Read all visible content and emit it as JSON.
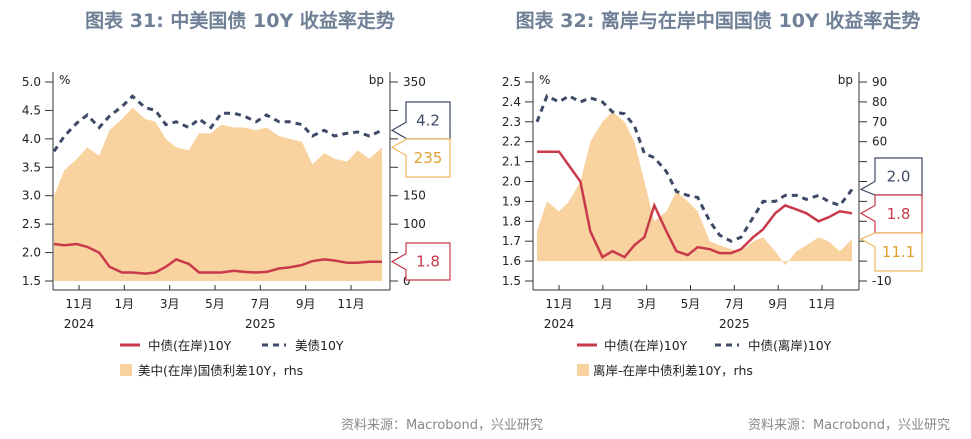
{
  "colors": {
    "cn_onshore": "#c8394a",
    "us": "#3e4a66",
    "spread": "#f8d3a0",
    "title": "#6f8096"
  },
  "chart_data": [
    {
      "type": "line+area",
      "title": "图表 31: 中美国债 10Y 收益率走势",
      "left_unit": "%",
      "right_unit": "bp",
      "ylim_left": [
        1.5,
        5.0
      ],
      "yticks_left": [
        "5.0",
        "4.5",
        "4.0",
        "3.5",
        "3.0",
        "2.5",
        "2.0",
        "1.5"
      ],
      "ylim_right": [
        0,
        350
      ],
      "yticks_right": [
        "350",
        "150",
        "100",
        "0"
      ],
      "xticks": [
        "11月",
        "1月",
        "3月",
        "5月",
        "7月",
        "9月",
        "11月"
      ],
      "xyears": [
        "2024",
        "2025"
      ],
      "x": [
        "2024-10-01",
        "2024-10-15",
        "2024-11-01",
        "2024-11-15",
        "2024-12-01",
        "2024-12-15",
        "2025-01-01",
        "2025-01-15",
        "2025-02-01",
        "2025-02-15",
        "2025-03-01",
        "2025-03-15",
        "2025-04-01",
        "2025-04-15",
        "2025-05-01",
        "2025-05-15",
        "2025-06-01",
        "2025-06-15",
        "2025-07-01",
        "2025-07-15",
        "2025-08-01",
        "2025-08-15",
        "2025-09-01",
        "2025-09-15",
        "2025-10-01",
        "2025-10-15",
        "2025-11-01",
        "2025-11-15",
        "2025-12-01",
        "2025-12-18"
      ],
      "series": [
        {
          "name": "美中(在岸)国债利差10Y，rhs",
          "axis": "right",
          "style": "area",
          "values": [
            150,
            195,
            215,
            235,
            220,
            265,
            285,
            305,
            285,
            280,
            250,
            235,
            230,
            260,
            260,
            275,
            270,
            270,
            265,
            270,
            255,
            250,
            245,
            205,
            225,
            215,
            210,
            230,
            215,
            235
          ]
        },
        {
          "name": "美债10Y",
          "axis": "left",
          "style": "dashed",
          "values": [
            3.78,
            4.05,
            4.28,
            4.42,
            4.2,
            4.4,
            4.57,
            4.75,
            4.55,
            4.5,
            4.25,
            4.3,
            4.2,
            4.35,
            4.2,
            4.45,
            4.45,
            4.4,
            4.3,
            4.42,
            4.3,
            4.3,
            4.25,
            4.05,
            4.15,
            4.05,
            4.1,
            4.12,
            4.05,
            4.15
          ]
        },
        {
          "name": "中债(在岸)10Y",
          "axis": "left",
          "style": "solid",
          "values": [
            2.15,
            2.13,
            2.15,
            2.1,
            2.0,
            1.75,
            1.65,
            1.65,
            1.63,
            1.65,
            1.75,
            1.88,
            1.8,
            1.65,
            1.65,
            1.65,
            1.68,
            1.66,
            1.65,
            1.66,
            1.72,
            1.74,
            1.78,
            1.85,
            1.88,
            1.86,
            1.82,
            1.82,
            1.84,
            1.84
          ]
        }
      ],
      "end_labels": [
        {
          "text": "4.2",
          "series": "美债10Y"
        },
        {
          "text": "235",
          "series": "美中(在岸)国债利差10Y，rhs"
        },
        {
          "text": "1.8",
          "series": "中债(在岸)10Y"
        }
      ]
    },
    {
      "type": "line+area",
      "title": "图表 32: 离岸与在岸中国国债 10Y 收益率走势",
      "left_unit": "%",
      "right_unit": "bp",
      "ylim_left": [
        1.5,
        2.5
      ],
      "yticks_left": [
        "2.5",
        "2.4",
        "2.3",
        "2.2",
        "2.1",
        "2.0",
        "1.9",
        "1.8",
        "1.7",
        "1.6",
        "1.5"
      ],
      "ylim_right": [
        -10,
        90
      ],
      "yticks_right": [
        "90",
        "80",
        "70",
        "60",
        "-10"
      ],
      "xticks": [
        "11月",
        "1月",
        "3月",
        "5月",
        "7月",
        "9月",
        "11月"
      ],
      "xyears": [
        "2024",
        "2025"
      ],
      "x": [
        "2024-10-01",
        "2024-10-15",
        "2024-11-01",
        "2024-11-15",
        "2024-12-01",
        "2024-12-15",
        "2025-01-01",
        "2025-01-15",
        "2025-02-01",
        "2025-02-15",
        "2025-03-01",
        "2025-03-15",
        "2025-04-01",
        "2025-04-15",
        "2025-05-01",
        "2025-05-15",
        "2025-06-01",
        "2025-06-15",
        "2025-07-01",
        "2025-07-15",
        "2025-08-01",
        "2025-08-15",
        "2025-09-01",
        "2025-09-15",
        "2025-10-01",
        "2025-10-15",
        "2025-11-01",
        "2025-11-15",
        "2025-12-01",
        "2025-12-18"
      ],
      "series": [
        {
          "name": "离岸-在岸中债利差10Y，rhs",
          "axis": "right",
          "style": "area",
          "values": [
            15,
            30,
            25,
            30,
            40,
            60,
            70,
            75,
            70,
            60,
            40,
            20,
            25,
            35,
            30,
            25,
            10,
            8,
            6,
            5,
            10,
            12,
            5,
            -2,
            5,
            8,
            12,
            10,
            5,
            11.1
          ]
        },
        {
          "name": "中债(离岸)10Y",
          "axis": "left",
          "style": "dashed",
          "values": [
            2.3,
            2.43,
            2.4,
            2.43,
            2.4,
            2.42,
            2.4,
            2.35,
            2.34,
            2.28,
            2.14,
            2.12,
            2.05,
            1.95,
            1.93,
            1.92,
            1.8,
            1.73,
            1.7,
            1.72,
            1.82,
            1.9,
            1.9,
            1.93,
            1.93,
            1.91,
            1.93,
            1.9,
            1.88,
            1.96
          ]
        },
        {
          "name": "中债(在岸)10Y",
          "axis": "left",
          "style": "solid",
          "values": [
            2.15,
            2.15,
            2.15,
            2.08,
            2.0,
            1.75,
            1.62,
            1.65,
            1.62,
            1.68,
            1.72,
            1.88,
            1.75,
            1.65,
            1.63,
            1.67,
            1.66,
            1.64,
            1.64,
            1.66,
            1.72,
            1.76,
            1.84,
            1.88,
            1.86,
            1.84,
            1.8,
            1.82,
            1.85,
            1.84
          ]
        }
      ],
      "end_labels": [
        {
          "text": "2.0",
          "series": "中债(离岸)10Y"
        },
        {
          "text": "1.8",
          "series": "中债(在岸)10Y"
        },
        {
          "text": "11.1",
          "series": "离岸-在岸中债利差10Y，rhs"
        }
      ]
    }
  ],
  "source": "资料来源：Macrobond，兴业研究"
}
